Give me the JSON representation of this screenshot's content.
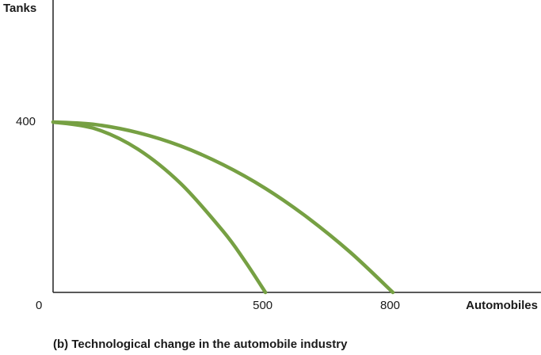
{
  "chart_data": {
    "type": "line",
    "ylabel": "Tanks",
    "xlabel": "Automobiles",
    "caption": "(b) Technological change in the automobile industry",
    "origin_label": "0",
    "xlim": [
      0,
      1150
    ],
    "ylim": [
      0,
      1000
    ],
    "x_ticks": [
      500,
      800
    ],
    "y_ticks": [
      400
    ],
    "grid": false,
    "line_color": "#76a043",
    "series": [
      {
        "points": [
          [
            0,
            400
          ],
          [
            100,
            384
          ],
          [
            200,
            336
          ],
          [
            300,
            256
          ],
          [
            400,
            144
          ],
          [
            450,
            76
          ],
          [
            500,
            0
          ]
        ]
      },
      {
        "points": [
          [
            0,
            400
          ],
          [
            100,
            394
          ],
          [
            200,
            375
          ],
          [
            300,
            344
          ],
          [
            400,
            300
          ],
          [
            500,
            244
          ],
          [
            600,
            175
          ],
          [
            700,
            94
          ],
          [
            800,
            0
          ]
        ]
      }
    ]
  }
}
